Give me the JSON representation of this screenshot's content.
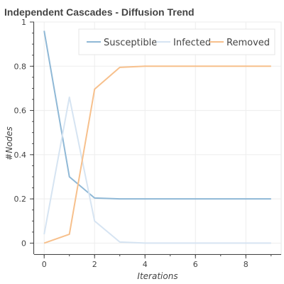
{
  "chart_data": {
    "type": "line",
    "title": "Independent Cascades - Diffusion Trend",
    "xlabel": "Iterations",
    "ylabel": "#Nodes",
    "xlim": [
      -0.4,
      9.4
    ],
    "ylim": [
      -0.05,
      1.0
    ],
    "x_ticks": [
      0,
      2,
      4,
      6,
      8
    ],
    "y_ticks": [
      0,
      0.2,
      0.4,
      0.6,
      0.8,
      1
    ],
    "grid": true,
    "legend_position": "top-right",
    "x": [
      0,
      1,
      2,
      3,
      4,
      5,
      6,
      7,
      8,
      9
    ],
    "series": [
      {
        "name": "Susceptible",
        "color": "#8fb8d6",
        "values": [
          0.96,
          0.3,
          0.204,
          0.2,
          0.2,
          0.2,
          0.2,
          0.2,
          0.2,
          0.2
        ]
      },
      {
        "name": "Infected",
        "color": "#d6e4f2",
        "values": [
          0.04,
          0.66,
          0.1,
          0.005,
          0.0,
          0.0,
          0.0,
          0.0,
          0.0,
          0.0
        ]
      },
      {
        "name": "Removed",
        "color": "#f7c08c",
        "values": [
          0.0,
          0.04,
          0.696,
          0.795,
          0.8,
          0.8,
          0.8,
          0.8,
          0.8,
          0.8
        ]
      }
    ]
  }
}
